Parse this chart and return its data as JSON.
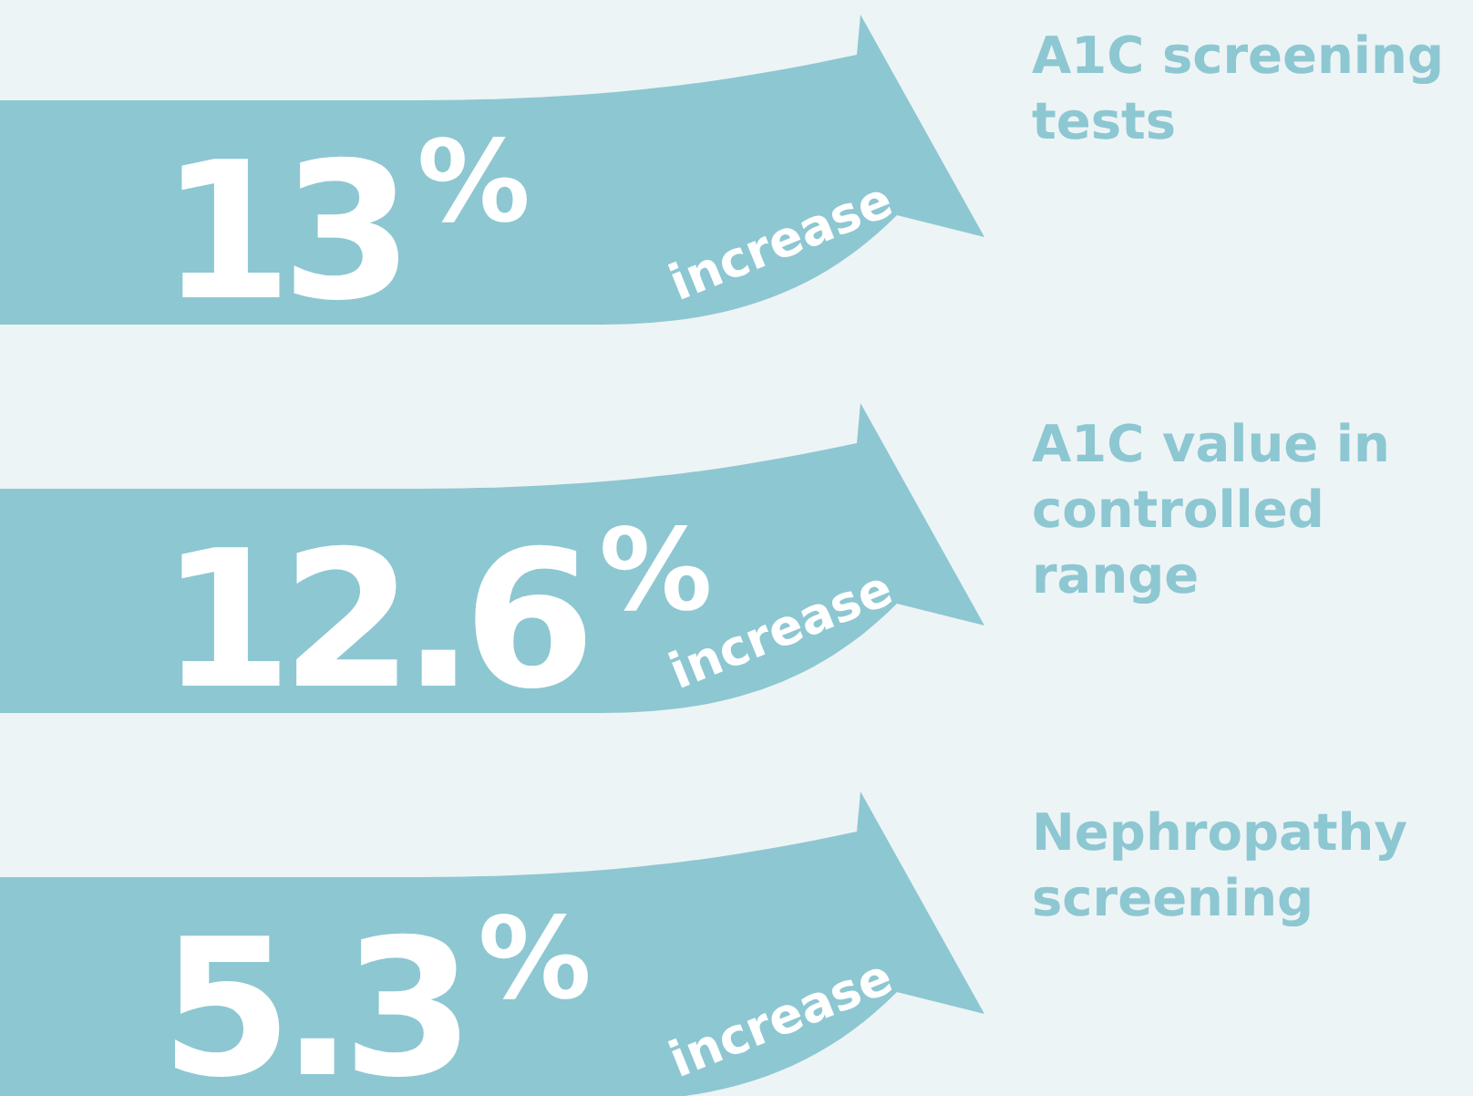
{
  "chart_data": {
    "type": "other",
    "categories": [
      "A1C screening tests",
      "A1C value in controlled range",
      "Nephropathy screening"
    ],
    "values": [
      13,
      12.6,
      5.3
    ],
    "value_labels": [
      "13$^{%}$",
      "12.6$^{%}$",
      "5.3$^{%}$"
    ],
    "annotations": [
      "increase",
      "increase",
      "increase"
    ],
    "color": "#8dc7d2"
  }
}
